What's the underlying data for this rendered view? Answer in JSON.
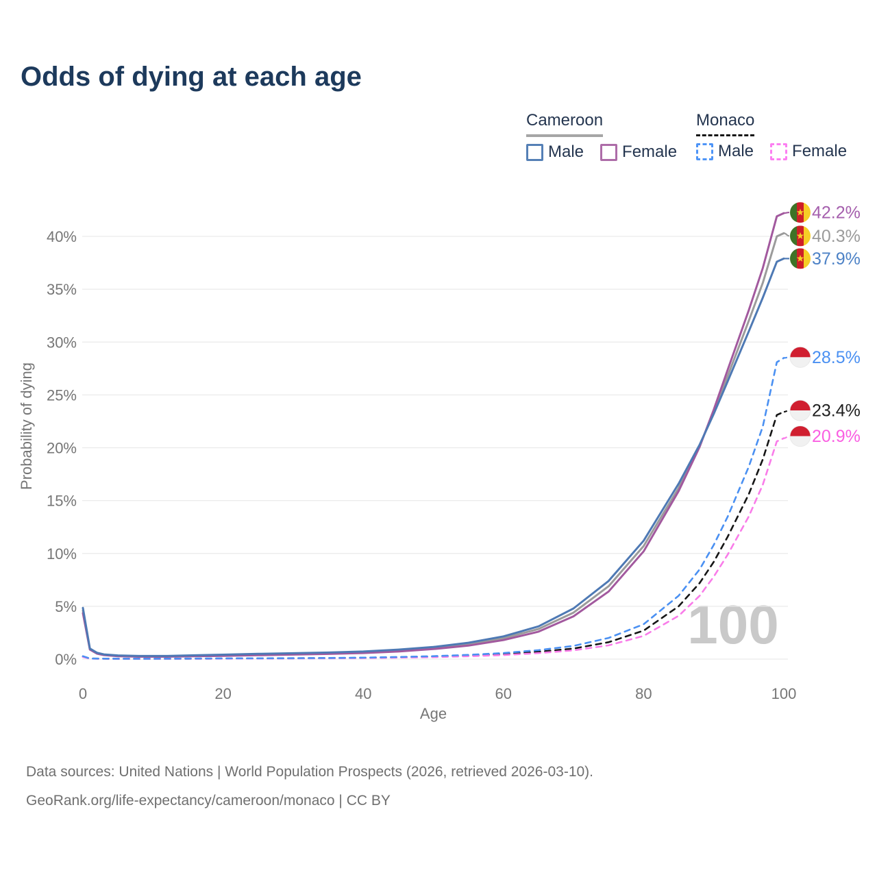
{
  "title": "Odds of dying at each age",
  "watermark": "100",
  "footer": {
    "line1": "Data sources: United Nations | World Population Prospects (2026, retrieved 2026-03-10).",
    "line2": "GeoRank.org/life-expectancy/cameroon/monaco | CC BY"
  },
  "legend": {
    "groups": [
      {
        "name": "Cameroon",
        "line_style": "solid",
        "underline_color": "#a6a6a6",
        "items": [
          {
            "label": "Male",
            "color": "#5580b6"
          },
          {
            "label": "Female",
            "color": "#ad6ca8"
          }
        ]
      },
      {
        "name": "Monaco",
        "line_style": "dashed",
        "underline_color": "#141414",
        "items": [
          {
            "label": "Male",
            "color": "#4d94f7"
          },
          {
            "label": "Female",
            "color": "#fc7ff1"
          }
        ]
      }
    ]
  },
  "chart_data": {
    "type": "line",
    "title": "Odds of dying at each age",
    "xlabel": "Age",
    "ylabel": "Probability of dying",
    "xlim": [
      0,
      100
    ],
    "ylim": [
      0,
      43.5
    ],
    "grid": "horizontal-only",
    "x_ticks": [
      {
        "value": 0,
        "label": "0"
      },
      {
        "value": 20,
        "label": "20"
      },
      {
        "value": 40,
        "label": "40"
      },
      {
        "value": 60,
        "label": "60"
      },
      {
        "value": 80,
        "label": "80"
      },
      {
        "value": 100,
        "label": "100"
      }
    ],
    "y_ticks": [
      {
        "value": 0,
        "label": "0%"
      },
      {
        "value": 5,
        "label": "5%"
      },
      {
        "value": 10,
        "label": "10%"
      },
      {
        "value": 15,
        "label": "15%"
      },
      {
        "value": 20,
        "label": "20%"
      },
      {
        "value": 25,
        "label": "25%"
      },
      {
        "value": 30,
        "label": "30%"
      },
      {
        "value": 35,
        "label": "35%"
      },
      {
        "value": 40,
        "label": "40%"
      }
    ],
    "flags": {
      "cameroon": {
        "green": "#3e7327",
        "red": "#ce1f28",
        "yellow": "#f6ce26",
        "star": "#f6ce26"
      },
      "monaco": {
        "red": "#d01f30",
        "white": "#f1f1f1"
      }
    },
    "series": [
      {
        "name": "Cameroon",
        "color": "#9b9b9b",
        "label_color": "#9b9b9b",
        "dashed": false,
        "flag": "cameroon",
        "end_label": "40.3%",
        "end_value": 40.3,
        "label_dy": 4,
        "points": [
          [
            0,
            4.6
          ],
          [
            1,
            0.95
          ],
          [
            2,
            0.56
          ],
          [
            3,
            0.42
          ],
          [
            5,
            0.31
          ],
          [
            8,
            0.26
          ],
          [
            12,
            0.26
          ],
          [
            16,
            0.31
          ],
          [
            20,
            0.36
          ],
          [
            25,
            0.43
          ],
          [
            30,
            0.49
          ],
          [
            35,
            0.55
          ],
          [
            40,
            0.65
          ],
          [
            45,
            0.8
          ],
          [
            50,
            1.05
          ],
          [
            55,
            1.4
          ],
          [
            60,
            1.97
          ],
          [
            65,
            2.85
          ],
          [
            70,
            4.4
          ],
          [
            75,
            6.9
          ],
          [
            80,
            10.7
          ],
          [
            85,
            16.2
          ],
          [
            88,
            20.2
          ],
          [
            90,
            23.4
          ],
          [
            92,
            26.8
          ],
          [
            95,
            32.0
          ],
          [
            97,
            35.6
          ],
          [
            99,
            40.0
          ],
          [
            100,
            40.3
          ]
        ]
      },
      {
        "name": "Cameroon Female",
        "color": "#a2599e",
        "label_color": "#a55fad",
        "dashed": false,
        "flag": "cameroon",
        "end_label": "42.2%",
        "end_value": 42.2,
        "label_dy": -1,
        "points": [
          [
            0,
            4.35
          ],
          [
            1,
            0.9
          ],
          [
            2,
            0.52
          ],
          [
            3,
            0.38
          ],
          [
            5,
            0.28
          ],
          [
            8,
            0.23
          ],
          [
            12,
            0.23
          ],
          [
            16,
            0.27
          ],
          [
            20,
            0.31
          ],
          [
            25,
            0.37
          ],
          [
            30,
            0.43
          ],
          [
            35,
            0.49
          ],
          [
            40,
            0.58
          ],
          [
            45,
            0.72
          ],
          [
            50,
            0.95
          ],
          [
            55,
            1.28
          ],
          [
            60,
            1.8
          ],
          [
            65,
            2.6
          ],
          [
            70,
            4.05
          ],
          [
            75,
            6.4
          ],
          [
            80,
            10.2
          ],
          [
            85,
            15.9
          ],
          [
            88,
            20.1
          ],
          [
            90,
            23.6
          ],
          [
            92,
            27.4
          ],
          [
            95,
            33.0
          ],
          [
            97,
            37.0
          ],
          [
            99,
            41.9
          ],
          [
            100,
            42.2
          ]
        ]
      },
      {
        "name": "Cameroon Male",
        "color": "#4e79b4",
        "label_color": "#4d82c6",
        "dashed": false,
        "flag": "cameroon",
        "end_label": "37.9%",
        "end_value": 37.9,
        "label_dy": 0,
        "points": [
          [
            0,
            4.85
          ],
          [
            1,
            1.0
          ],
          [
            2,
            0.6
          ],
          [
            3,
            0.45
          ],
          [
            5,
            0.35
          ],
          [
            8,
            0.3
          ],
          [
            12,
            0.3
          ],
          [
            16,
            0.36
          ],
          [
            20,
            0.42
          ],
          [
            25,
            0.5
          ],
          [
            30,
            0.56
          ],
          [
            35,
            0.62
          ],
          [
            40,
            0.72
          ],
          [
            45,
            0.9
          ],
          [
            50,
            1.15
          ],
          [
            55,
            1.55
          ],
          [
            60,
            2.15
          ],
          [
            65,
            3.1
          ],
          [
            70,
            4.8
          ],
          [
            75,
            7.4
          ],
          [
            80,
            11.2
          ],
          [
            85,
            16.6
          ],
          [
            88,
            20.3
          ],
          [
            90,
            23.2
          ],
          [
            92,
            26.3
          ],
          [
            95,
            31.0
          ],
          [
            97,
            34.2
          ],
          [
            99,
            37.6
          ],
          [
            100,
            37.9
          ]
        ]
      },
      {
        "name": "Monaco",
        "color": "#161616",
        "label_color": "#1f1f1f",
        "dashed": true,
        "flag": "monaco",
        "end_label": "23.4%",
        "end_value": 23.4,
        "label_dy": -2,
        "points": [
          [
            0,
            0.24
          ],
          [
            1,
            0.05
          ],
          [
            5,
            0.03
          ],
          [
            10,
            0.03
          ],
          [
            15,
            0.04
          ],
          [
            20,
            0.055
          ],
          [
            25,
            0.065
          ],
          [
            30,
            0.075
          ],
          [
            35,
            0.095
          ],
          [
            40,
            0.12
          ],
          [
            45,
            0.17
          ],
          [
            50,
            0.23
          ],
          [
            55,
            0.33
          ],
          [
            60,
            0.47
          ],
          [
            65,
            0.7
          ],
          [
            70,
            1.0
          ],
          [
            75,
            1.6
          ],
          [
            80,
            2.7
          ],
          [
            85,
            5.0
          ],
          [
            88,
            7.2
          ],
          [
            90,
            9.2
          ],
          [
            92,
            11.6
          ],
          [
            95,
            15.6
          ],
          [
            97,
            18.9
          ],
          [
            99,
            23.1
          ],
          [
            100,
            23.4
          ]
        ]
      },
      {
        "name": "Monaco Female",
        "color": "#f97ce9",
        "label_color": "#fa5fe2",
        "dashed": true,
        "flag": "monaco",
        "end_label": "20.9%",
        "end_value": 20.9,
        "label_dy": -3,
        "points": [
          [
            0,
            0.2
          ],
          [
            1,
            0.045
          ],
          [
            5,
            0.025
          ],
          [
            10,
            0.025
          ],
          [
            15,
            0.033
          ],
          [
            20,
            0.045
          ],
          [
            25,
            0.055
          ],
          [
            30,
            0.065
          ],
          [
            35,
            0.08
          ],
          [
            40,
            0.1
          ],
          [
            45,
            0.14
          ],
          [
            50,
            0.19
          ],
          [
            55,
            0.27
          ],
          [
            60,
            0.38
          ],
          [
            65,
            0.57
          ],
          [
            70,
            0.83
          ],
          [
            75,
            1.3
          ],
          [
            80,
            2.2
          ],
          [
            85,
            4.1
          ],
          [
            88,
            6.0
          ],
          [
            90,
            7.8
          ],
          [
            92,
            9.9
          ],
          [
            95,
            13.5
          ],
          [
            97,
            16.5
          ],
          [
            99,
            20.6
          ],
          [
            100,
            20.9
          ]
        ]
      },
      {
        "name": "Monaco Male",
        "color": "#4a90f2",
        "label_color": "#4a90f2",
        "dashed": true,
        "flag": "monaco",
        "end_label": "28.5%",
        "end_value": 28.5,
        "label_dy": -1,
        "points": [
          [
            0,
            0.28
          ],
          [
            1,
            0.06
          ],
          [
            5,
            0.04
          ],
          [
            10,
            0.04
          ],
          [
            15,
            0.05
          ],
          [
            20,
            0.07
          ],
          [
            25,
            0.08
          ],
          [
            30,
            0.09
          ],
          [
            35,
            0.11
          ],
          [
            40,
            0.14
          ],
          [
            45,
            0.2
          ],
          [
            50,
            0.28
          ],
          [
            55,
            0.4
          ],
          [
            60,
            0.58
          ],
          [
            65,
            0.85
          ],
          [
            70,
            1.25
          ],
          [
            75,
            2.0
          ],
          [
            80,
            3.3
          ],
          [
            85,
            6.0
          ],
          [
            88,
            8.5
          ],
          [
            90,
            10.8
          ],
          [
            92,
            13.5
          ],
          [
            95,
            18.2
          ],
          [
            97,
            22.0
          ],
          [
            99,
            28.1
          ],
          [
            100,
            28.5
          ]
        ]
      }
    ]
  }
}
